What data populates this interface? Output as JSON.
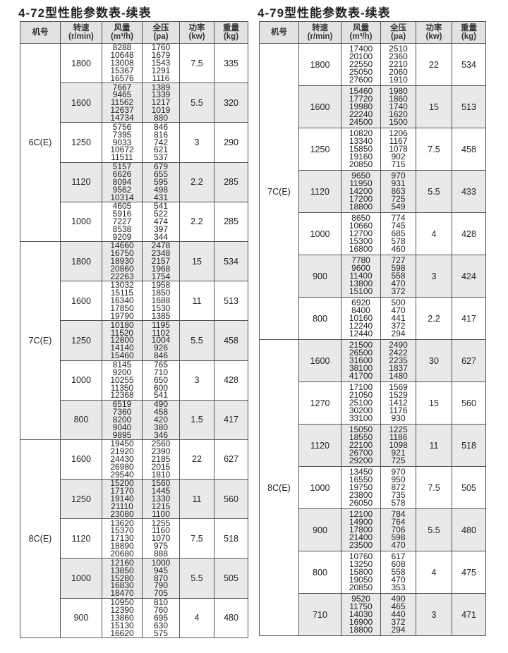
{
  "tables": [
    {
      "title": "4-72型性能参数表-续表",
      "headers": [
        {
          "l1": "机号",
          "l2": ""
        },
        {
          "l1": "转速",
          "l2": "(r/min)"
        },
        {
          "l1": "风量",
          "l2": "(m³/h)"
        },
        {
          "l1": "全压",
          "l2": "(pa)"
        },
        {
          "l1": "功率",
          "l2": "(kw)"
        },
        {
          "l1": "重量",
          "l2": "(kg)"
        }
      ],
      "models": [
        {
          "model": "6C(E)",
          "groups": [
            {
              "speed": "1800",
              "flow": [
                "8288",
                "10648",
                "13008",
                "15367",
                "16576"
              ],
              "pressure": [
                "1760",
                "1679",
                "1543",
                "1291",
                "1116"
              ],
              "power": "7.5",
              "weight": "335"
            },
            {
              "speed": "1600",
              "flow": [
                "7667",
                "9465",
                "11562",
                "12637",
                "14734"
              ],
              "pressure": [
                "1389",
                "1339",
                "1217",
                "1019",
                "880"
              ],
              "power": "5.5",
              "weight": "320"
            },
            {
              "speed": "1250",
              "flow": [
                "5756",
                "7395",
                "9033",
                "10672",
                "11511"
              ],
              "pressure": [
                "846",
                "816",
                "742",
                "621",
                "537"
              ],
              "power": "3",
              "weight": "290"
            },
            {
              "speed": "1120",
              "flow": [
                "5157",
                "6626",
                "8094",
                "9562",
                "10314"
              ],
              "pressure": [
                "679",
                "655",
                "595",
                "498",
                "431"
              ],
              "power": "2.2",
              "weight": "285"
            },
            {
              "speed": "1000",
              "flow": [
                "4605",
                "5916",
                "7227",
                "8538",
                "9209"
              ],
              "pressure": [
                "541",
                "522",
                "474",
                "397",
                "344"
              ],
              "power": "2.2",
              "weight": "285"
            }
          ]
        },
        {
          "model": "7C(E)",
          "groups": [
            {
              "speed": "1800",
              "flow": [
                "14660",
                "16750",
                "18930",
                "20860",
                "22263"
              ],
              "pressure": [
                "2478",
                "2348",
                "2157",
                "1968",
                "1754"
              ],
              "power": "15",
              "weight": "534"
            },
            {
              "speed": "1600",
              "flow": [
                "13032",
                "15115",
                "16340",
                "17850",
                "19790"
              ],
              "pressure": [
                "1958",
                "1850",
                "1688",
                "1530",
                "1385"
              ],
              "power": "11",
              "weight": "513"
            },
            {
              "speed": "1250",
              "flow": [
                "10180",
                "11520",
                "12800",
                "14140",
                "15460"
              ],
              "pressure": [
                "1195",
                "1102",
                "1004",
                "926",
                "846"
              ],
              "power": "5.5",
              "weight": "458"
            },
            {
              "speed": "1000",
              "flow": [
                "8145",
                "9200",
                "10255",
                "11350",
                "12368"
              ],
              "pressure": [
                "765",
                "710",
                "650",
                "600",
                "541"
              ],
              "power": "3",
              "weight": "428"
            },
            {
              "speed": "800",
              "flow": [
                "6519",
                "7360",
                "8200",
                "9040",
                "9895"
              ],
              "pressure": [
                "490",
                "458",
                "420",
                "380",
                "346"
              ],
              "power": "1.5",
              "weight": "417"
            }
          ]
        },
        {
          "model": "8C(E)",
          "groups": [
            {
              "speed": "1600",
              "flow": [
                "19450",
                "21920",
                "24430",
                "26980",
                "29540"
              ],
              "pressure": [
                "2560",
                "2390",
                "2185",
                "2015",
                "1810"
              ],
              "power": "22",
              "weight": "627"
            },
            {
              "speed": "1250",
              "flow": [
                "15200",
                "17170",
                "19140",
                "21110",
                "23080"
              ],
              "pressure": [
                "1560",
                "1445",
                "1330",
                "1215",
                "1100"
              ],
              "power": "11",
              "weight": "560"
            },
            {
              "speed": "1120",
              "flow": [
                "13620",
                "15370",
                "17130",
                "18890",
                "20680"
              ],
              "pressure": [
                "1255",
                "1160",
                "1070",
                "975",
                "888"
              ],
              "power": "7.5",
              "weight": "518"
            },
            {
              "speed": "1000",
              "flow": [
                "12160",
                "13850",
                "15280",
                "16830",
                "18470"
              ],
              "pressure": [
                "1000",
                "945",
                "870",
                "790",
                "705"
              ],
              "power": "5.5",
              "weight": "505"
            },
            {
              "speed": "900",
              "flow": [
                "10950",
                "12390",
                "13860",
                "15130",
                "16620"
              ],
              "pressure": [
                "810",
                "760",
                "695",
                "630",
                "575"
              ],
              "power": "4",
              "weight": "480"
            }
          ]
        }
      ]
    },
    {
      "title": "4-79型性能参数表-续表",
      "headers": [
        {
          "l1": "机号",
          "l2": ""
        },
        {
          "l1": "转速",
          "l2": "(r/min)"
        },
        {
          "l1": "风量",
          "l2": "(m³/h)"
        },
        {
          "l1": "全压",
          "l2": "(pa)"
        },
        {
          "l1": "功率",
          "l2": "(kw)"
        },
        {
          "l1": "重量",
          "l2": "(kg)"
        }
      ],
      "models": [
        {
          "model": "7C(E)",
          "groups": [
            {
              "speed": "1800",
              "flow": [
                "17400",
                "20100",
                "22550",
                "25050",
                "27600"
              ],
              "pressure": [
                "2510",
                "2360",
                "2210",
                "2060",
                "1910"
              ],
              "power": "22",
              "weight": "534"
            },
            {
              "speed": "1600",
              "flow": [
                "15460",
                "17720",
                "19980",
                "22240",
                "24500"
              ],
              "pressure": [
                "1980",
                "1860",
                "1740",
                "1620",
                "1500"
              ],
              "power": "15",
              "weight": "513"
            },
            {
              "speed": "1250",
              "flow": [
                "10820",
                "13340",
                "15850",
                "19160",
                "20850"
              ],
              "pressure": [
                "1206",
                "1167",
                "1078",
                "902",
                "715"
              ],
              "power": "7.5",
              "weight": "458"
            },
            {
              "speed": "1120",
              "flow": [
                "9650",
                "11950",
                "14200",
                "17200",
                "18800"
              ],
              "pressure": [
                "970",
                "931",
                "863",
                "725",
                "549"
              ],
              "power": "5.5",
              "weight": "433"
            },
            {
              "speed": "1000",
              "flow": [
                "8650",
                "10660",
                "12700",
                "15300",
                "16800"
              ],
              "pressure": [
                "774",
                "745",
                "685",
                "578",
                "460"
              ],
              "power": "4",
              "weight": "428"
            },
            {
              "speed": "900",
              "flow": [
                "7780",
                "9600",
                "11400",
                "13800",
                "15100"
              ],
              "pressure": [
                "727",
                "598",
                "558",
                "470",
                "372"
              ],
              "power": "3",
              "weight": "424"
            },
            {
              "speed": "800",
              "flow": [
                "6920",
                "8400",
                "10160",
                "12240",
                "12440"
              ],
              "pressure": [
                "500",
                "470",
                "441",
                "372",
                "294"
              ],
              "power": "2.2",
              "weight": "417"
            }
          ]
        },
        {
          "model": "8C(E)",
          "groups": [
            {
              "speed": "1600",
              "flow": [
                "21500",
                "26500",
                "31600",
                "38100",
                "41700"
              ],
              "pressure": [
                "2490",
                "2422",
                "2235",
                "1837",
                "1480"
              ],
              "power": "30",
              "weight": "627"
            },
            {
              "speed": "1270",
              "flow": [
                "17100",
                "21050",
                "25100",
                "30200",
                "33100"
              ],
              "pressure": [
                "1569",
                "1529",
                "1412",
                "1176",
                "930"
              ],
              "power": "15",
              "weight": "560"
            },
            {
              "speed": "1120",
              "flow": [
                "15050",
                "18550",
                "22100",
                "26700",
                "29200"
              ],
              "pressure": [
                "1225",
                "1186",
                "1098",
                "921",
                "725"
              ],
              "power": "11",
              "weight": "518"
            },
            {
              "speed": "1000",
              "flow": [
                "13450",
                "16550",
                "19750",
                "23800",
                "26050"
              ],
              "pressure": [
                "970",
                "950",
                "872",
                "735",
                "578"
              ],
              "power": "7.5",
              "weight": "505"
            },
            {
              "speed": "900",
              "flow": [
                "12100",
                "14900",
                "17800",
                "21400",
                "23500"
              ],
              "pressure": [
                "784",
                "764",
                "706",
                "598",
                "470"
              ],
              "power": "5.5",
              "weight": "480"
            },
            {
              "speed": "800",
              "flow": [
                "10760",
                "13250",
                "15800",
                "19050",
                "20850"
              ],
              "pressure": [
                "617",
                "608",
                "558",
                "470",
                "353"
              ],
              "power": "4",
              "weight": "475"
            },
            {
              "speed": "710",
              "flow": [
                "9520",
                "11750",
                "14030",
                "16900",
                "18800"
              ],
              "pressure": [
                "490",
                "465",
                "440",
                "372",
                "294"
              ],
              "power": "3",
              "weight": "471"
            }
          ]
        }
      ]
    }
  ],
  "colors": {
    "header_bg": "#e2e2e2",
    "alt_row_bg": "#e9e9e9",
    "border": "#555555"
  }
}
